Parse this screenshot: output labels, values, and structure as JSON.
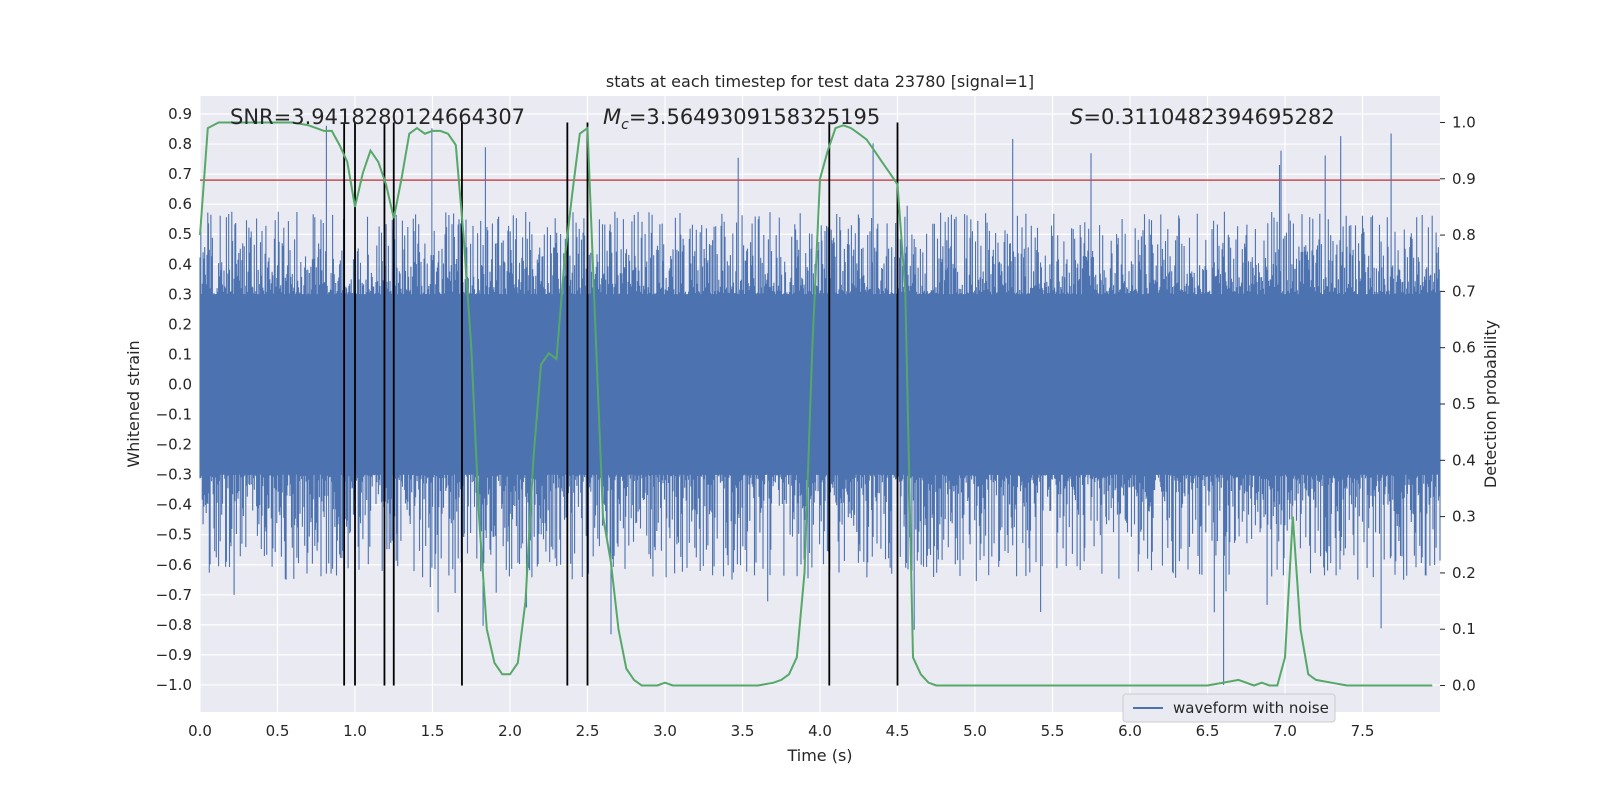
{
  "chart_data": {
    "type": "line",
    "title": "stats at each timestep for test data 23780 [signal=1]",
    "xlabel": "Time (s)",
    "ylabel_left": "Whitened strain",
    "ylabel_right": "Detection probability",
    "xlim": [
      0.0,
      8.0
    ],
    "ylim_left": [
      -1.09,
      0.96
    ],
    "ylim_right": [
      -0.047,
      1.047
    ],
    "x_ticks": [
      "0.0",
      "0.5",
      "1.0",
      "1.5",
      "2.0",
      "2.5",
      "3.0",
      "3.5",
      "4.0",
      "4.5",
      "5.0",
      "5.5",
      "6.0",
      "6.5",
      "7.0",
      "7.5"
    ],
    "y_ticks_left": [
      "0.9",
      "0.8",
      "0.7",
      "0.6",
      "0.5",
      "0.4",
      "0.3",
      "0.2",
      "0.1",
      "0.0",
      "-0.1",
      "-0.2",
      "-0.3",
      "-0.4",
      "-0.5",
      "-0.6",
      "-0.7",
      "-0.8",
      "-0.9",
      "-1.0"
    ],
    "y_ticks_right": [
      "1.0",
      "0.9",
      "0.8",
      "0.7",
      "0.6",
      "0.5",
      "0.4",
      "0.3",
      "0.2",
      "0.1",
      "0.0"
    ],
    "grid": true,
    "legend_position": "lower-right",
    "annotations": {
      "snr": "SNR=3.9418280124664307",
      "mc_symbol": "M",
      "mc_sub": "c",
      "mc_value": "=3.5649309158325195",
      "s_symbol": "S",
      "s_value": "=0.3110482394695282"
    },
    "series": [
      {
        "name": "waveform with noise",
        "color": "#4c72b0",
        "axis": "left",
        "description_only": false
      },
      {
        "axis": "right",
        "color": "#55a868",
        "x": [
          0.0,
          0.05,
          0.12,
          0.2,
          0.3,
          0.4,
          0.5,
          0.6,
          0.7,
          0.8,
          0.85,
          0.9,
          0.95,
          1.0,
          1.05,
          1.1,
          1.15,
          1.2,
          1.25,
          1.3,
          1.35,
          1.4,
          1.45,
          1.5,
          1.55,
          1.6,
          1.65,
          1.7,
          1.75,
          1.8,
          1.85,
          1.9,
          1.95,
          2.0,
          2.05,
          2.1,
          2.15,
          2.2,
          2.25,
          2.3,
          2.35,
          2.4,
          2.45,
          2.5,
          2.55,
          2.6,
          2.65,
          2.7,
          2.75,
          2.8,
          2.85,
          2.9,
          2.95,
          3.0,
          3.05,
          3.1,
          3.2,
          3.3,
          3.4,
          3.5,
          3.6,
          3.7,
          3.75,
          3.8,
          3.85,
          3.9,
          3.95,
          4.0,
          4.05,
          4.1,
          4.15,
          4.2,
          4.25,
          4.3,
          4.35,
          4.4,
          4.45,
          4.5,
          4.55,
          4.6,
          4.65,
          4.7,
          4.75,
          4.8,
          4.85,
          4.9,
          5.0,
          5.2,
          5.5,
          6.0,
          6.5,
          6.7,
          6.75,
          6.8,
          6.85,
          6.9,
          6.95,
          7.0,
          7.05,
          7.1,
          7.15,
          7.2,
          7.3,
          7.4,
          7.5,
          7.7,
          7.85,
          7.95
        ],
        "y": [
          0.8,
          0.99,
          1.0,
          1.0,
          1.0,
          1.0,
          1.0,
          1.0,
          0.995,
          0.985,
          0.985,
          0.96,
          0.93,
          0.85,
          0.91,
          0.95,
          0.93,
          0.89,
          0.83,
          0.9,
          0.98,
          0.99,
          0.98,
          0.985,
          0.985,
          0.98,
          0.96,
          0.8,
          0.6,
          0.3,
          0.1,
          0.04,
          0.02,
          0.02,
          0.04,
          0.15,
          0.4,
          0.57,
          0.59,
          0.58,
          0.75,
          0.87,
          0.98,
          0.99,
          0.64,
          0.3,
          0.22,
          0.1,
          0.03,
          0.01,
          0.0,
          0.0,
          0.0,
          0.005,
          0.0,
          0.0,
          0.0,
          0.0,
          0.0,
          0.0,
          0.0,
          0.005,
          0.01,
          0.02,
          0.05,
          0.2,
          0.6,
          0.9,
          0.95,
          0.99,
          0.995,
          0.99,
          0.98,
          0.97,
          0.95,
          0.93,
          0.91,
          0.89,
          0.7,
          0.05,
          0.02,
          0.005,
          0.0,
          0.0,
          0.0,
          0.0,
          0.0,
          0.0,
          0.0,
          0.0,
          0.0,
          0.01,
          0.005,
          0.0,
          0.005,
          0.0,
          0.0,
          0.05,
          0.3,
          0.1,
          0.02,
          0.01,
          0.005,
          0.0,
          0.0,
          0.0,
          0.0,
          0.0
        ]
      },
      {
        "axis": "left",
        "color": "#c44e52",
        "type": "threshold",
        "y": 0.68
      }
    ],
    "vertical_markers_x": [
      0.93,
      1.0,
      1.19,
      1.25,
      1.69,
      2.37,
      2.5,
      4.06,
      4.5
    ],
    "noise_envelope": {
      "core_amplitude": 0.3,
      "typical_peak": 0.55,
      "max_peak": 0.87,
      "min_trough": -1.0
    }
  }
}
